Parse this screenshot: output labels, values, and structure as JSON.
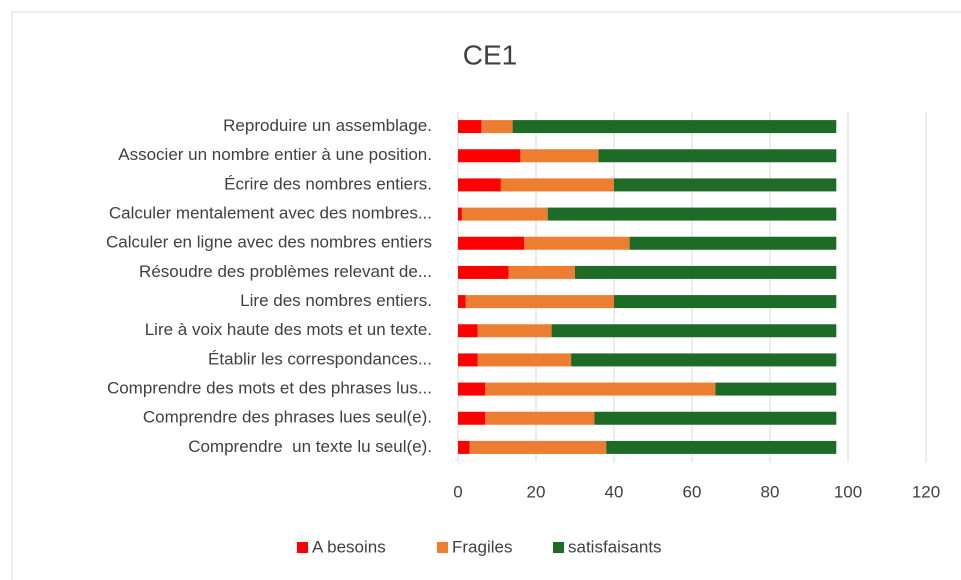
{
  "chart_data": {
    "type": "stacked-bar-horizontal",
    "title": "CE1",
    "categories": [
      "Reproduire un assemblage.",
      "Associer un nombre entier à une position.",
      "Écrire des nombres entiers.",
      "Calculer mentalement avec des nombres...",
      "Calculer en ligne avec des nombres entiers",
      "Résoudre des problèmes relevant de...",
      "Lire des nombres entiers.",
      "Lire à voix haute des mots et un texte.",
      "Établir les correspondances...",
      "Comprendre des mots et des phrases lus...",
      "Comprendre des phrases lues seul(e).",
      "Comprendre  un texte lu seul(e)."
    ],
    "series": [
      {
        "name": "A besoins",
        "color": "#ff0000",
        "values": [
          6,
          16,
          11,
          1,
          17,
          13,
          2,
          5,
          5,
          7,
          7,
          3
        ]
      },
      {
        "name": "Fragiles",
        "color": "#ed7d31",
        "values": [
          8,
          20,
          29,
          22,
          27,
          17,
          38,
          19,
          24,
          59,
          28,
          35
        ]
      },
      {
        "name": "satisfaisants",
        "color": "#1e6b28",
        "values": [
          83,
          61,
          57,
          74,
          53,
          67,
          57,
          73,
          68,
          31,
          62,
          59
        ]
      }
    ],
    "xlim": [
      0,
      120
    ],
    "xticks": [
      0,
      20,
      40,
      60,
      80,
      100,
      120
    ],
    "grid": true,
    "legend": "bottom"
  }
}
